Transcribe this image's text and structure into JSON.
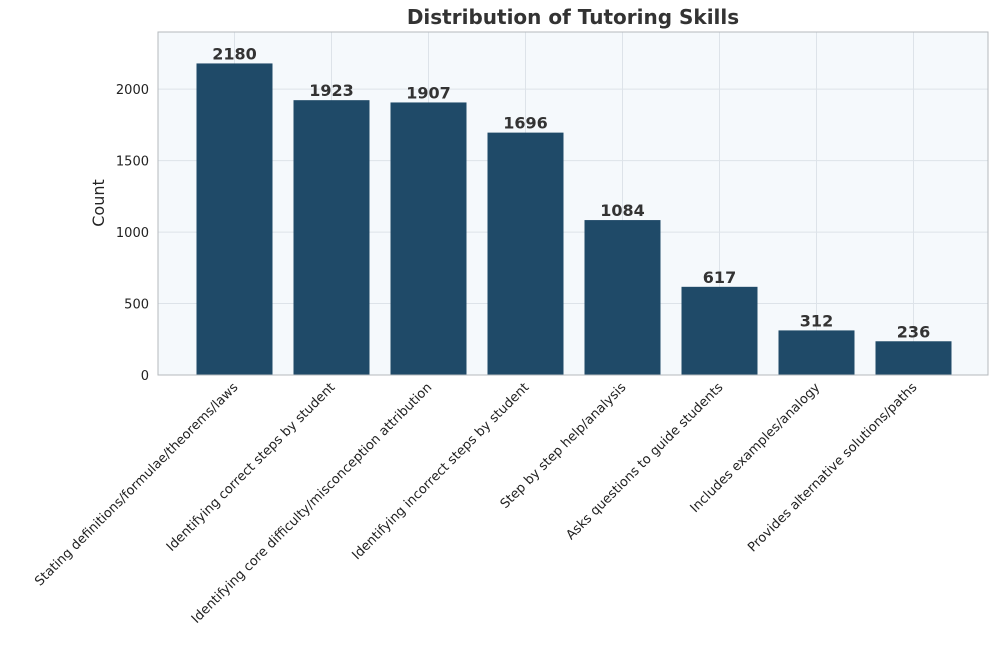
{
  "chart_data": {
    "type": "bar",
    "title": "Distribution of Tutoring Skills",
    "xlabel": "",
    "ylabel": "Count",
    "categories": [
      "Stating definitions/formulae/theorems/laws",
      "Identifying correct steps by student",
      "Identifying core difficulty/misconception attribution",
      "Identifying incorrect steps by student",
      "Step by step help/analysis",
      "Asks questions to guide students",
      "Includes examples/analogy",
      "Provides alternative solutions/paths"
    ],
    "values": [
      2180,
      1923,
      1907,
      1696,
      1084,
      617,
      312,
      236
    ],
    "ylim": [
      0,
      2400
    ],
    "yticks": [
      0,
      500,
      1000,
      1500,
      2000
    ],
    "grid": true,
    "legend": "none",
    "colors": {
      "bar": "#1f4a68",
      "plot_background": "#f5f9fc",
      "grid": "#dde3e9",
      "frame": "#b5b9bd"
    }
  }
}
